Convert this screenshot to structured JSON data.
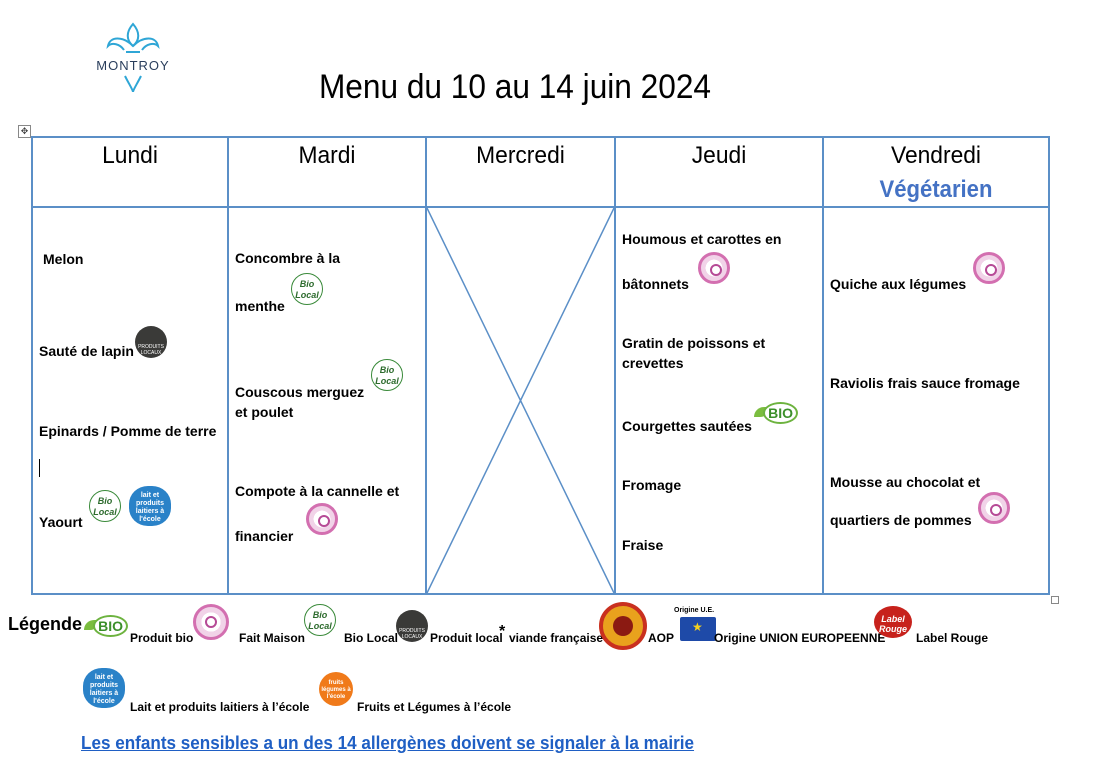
{
  "logo": {
    "text": "MONTROY",
    "icon": "fleur-de-lis-logo"
  },
  "title": "Menu du 10 au 14 juin 2024",
  "days": [
    "Lundi",
    "Mardi",
    "Mercredi",
    "Jeudi",
    "Vendredi"
  ],
  "vendredi_theme": "Végétarien",
  "menu": {
    "lundi": [
      "Melon",
      "Sauté de lapin",
      "Epinards / Pomme de terre",
      "Yaourt"
    ],
    "mardi": [
      "Concombre à la",
      "menthe",
      "Couscous merguez",
      "et poulet",
      "Compote à la cannelle et",
      "financier"
    ],
    "jeudi": [
      "Houmous et carottes en",
      "bâtonnets",
      "Gratin de poissons et",
      "crevettes",
      "Courgettes sautées",
      "Fromage",
      "Fraise"
    ],
    "vendredi": [
      "Quiche aux légumes",
      "Raviolis frais sauce fromage",
      "Mousse au chocolat et",
      "quartiers de pommes"
    ]
  },
  "legend": {
    "title": "Légende",
    "produit_bio": "Produit bio",
    "fait_maison": "Fait Maison",
    "bio_local": "Bio Local",
    "produit_local": "Produit local",
    "star": "*",
    "viande": "viande française",
    "aop": "AOP",
    "origine_label": "Origine U.E.",
    "origine": "Origine UNION EUROPEENNE",
    "label_rouge": "Label Rouge",
    "lait": "Lait et produits laitiers à l’école",
    "fruits": "Fruits et Légumes à l’école"
  },
  "badges": {
    "bio": "BIO",
    "bio_local": "Bio Local",
    "produit_local": "PRODUITS LOCAUX",
    "lait": "lait et produits laitiers à l'école",
    "label_rouge": "Label Rouge",
    "fruits": "fruits légumes à l'école"
  },
  "allergen_note": "Les enfants sensibles a un des 14 allergènes doivent se signaler à la mairie",
  "colors": {
    "table_border": "#5b8fc7",
    "vegetarien": "#4472c4",
    "link": "#1f5fc4",
    "fait_maison": "#d36fb0"
  }
}
